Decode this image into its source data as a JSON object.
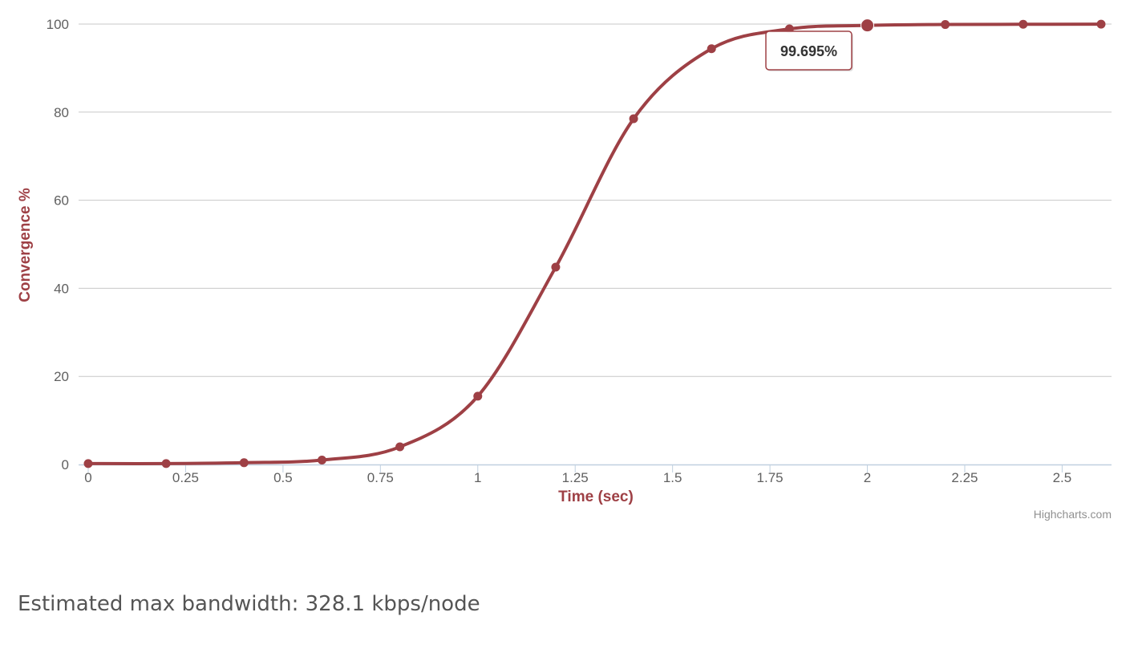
{
  "chart_data": {
    "type": "line",
    "title": "",
    "xlabel": "Time (sec)",
    "ylabel": "Convergence %",
    "xlim": [
      0,
      2.6
    ],
    "ylim": [
      0,
      100
    ],
    "x_ticks": [
      "0",
      "0.25",
      "0.5",
      "0.75",
      "1",
      "1.25",
      "1.5",
      "1.75",
      "2",
      "2.25",
      "2.5"
    ],
    "x_tick_values": [
      0,
      0.25,
      0.5,
      0.75,
      1,
      1.25,
      1.5,
      1.75,
      2,
      2.25,
      2.5
    ],
    "y_ticks": [
      "0",
      "20",
      "40",
      "60",
      "80",
      "100"
    ],
    "y_tick_values": [
      0,
      20,
      40,
      60,
      80,
      100
    ],
    "grid": "horizontal",
    "series": [
      {
        "x": [
          0,
          0.2,
          0.4,
          0.6,
          0.8,
          1.0,
          1.2,
          1.4,
          1.6,
          1.8,
          2.0,
          2.2,
          2.4,
          2.6
        ],
        "values": [
          0.2,
          0.2,
          0.4,
          1.0,
          4.0,
          15.5,
          44.8,
          78.5,
          94.4,
          98.9,
          99.695,
          99.9,
          99.95,
          99.98
        ]
      }
    ],
    "highlighted_point": {
      "x": 2.0,
      "y": 99.695
    },
    "tooltip": "99.695%",
    "colors": {
      "series": "#9e4045",
      "axis_title": "#9e4045",
      "grid": "#c8c8c8",
      "axis_line": "#c0d0e0"
    }
  },
  "credits": "Highcharts.com",
  "footer": {
    "bandwidth_text": "Estimated max bandwidth: 328.1 kbps/node"
  }
}
